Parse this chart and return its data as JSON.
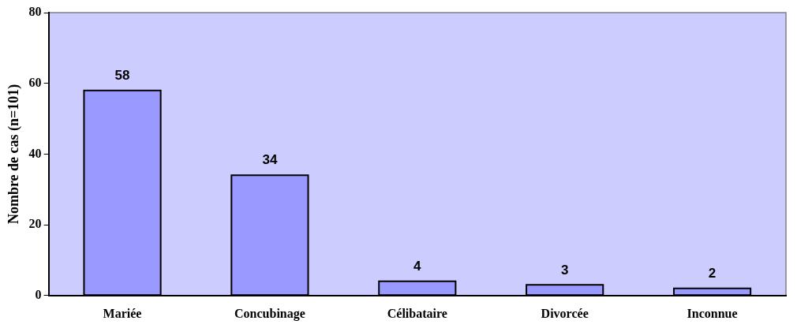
{
  "chart_data": {
    "type": "bar",
    "ylabel": "Nombre de cas (n=101)",
    "categories": [
      "Mariée",
      "Concubinage",
      "Célibataire",
      "Divorcée",
      "Inconnue"
    ],
    "values": [
      58,
      34,
      4,
      3,
      2
    ],
    "color": "#9999ff",
    "ylim": [
      0,
      80
    ],
    "yticks": [
      0,
      20,
      40,
      60,
      80
    ],
    "grid": false,
    "legend": false,
    "data_labels": true
  }
}
